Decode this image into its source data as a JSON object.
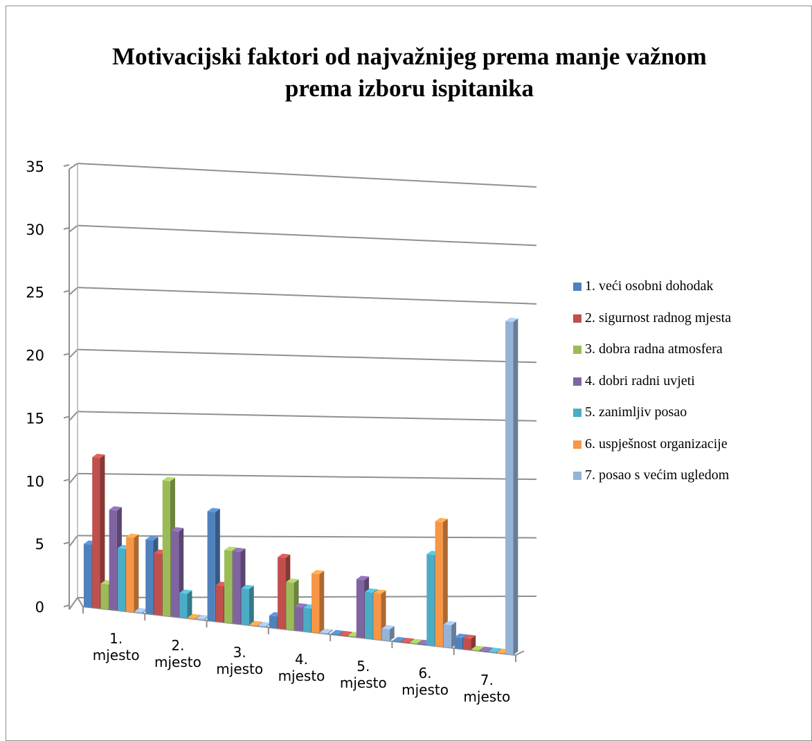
{
  "chart_data": {
    "type": "bar",
    "title": "Motivacijski faktori od najvažnijeg prema manje važnom prema izboru ispitanika",
    "categories": [
      "1. mjesto",
      "2. mjesto",
      "3. mjesto",
      "4. mjesto",
      "5. mjesto",
      "6. mjesto",
      "7. mjesto"
    ],
    "series": [
      {
        "name": "1. veći osobni dohodak",
        "color": "#4F81BD",
        "values": [
          5,
          6,
          9,
          1,
          0,
          0,
          1
        ]
      },
      {
        "name": "2. sigurnost radnog mjesta",
        "color": "#C0504D",
        "values": [
          12,
          5,
          3,
          6,
          0,
          0,
          1
        ]
      },
      {
        "name": "3. dobra radna atmosfera",
        "color": "#9BBB59",
        "values": [
          2,
          11,
          6,
          4,
          0,
          0,
          0
        ]
      },
      {
        "name": "4. dobri radni uvjeti",
        "color": "#8064A2",
        "values": [
          8,
          7,
          6,
          2,
          5,
          0,
          0
        ]
      },
      {
        "name": "5. zanimljiv posao",
        "color": "#4BACC6",
        "values": [
          5,
          2,
          3,
          2,
          4,
          8,
          0
        ]
      },
      {
        "name": "6. uspješnost organizacije",
        "color": "#F79646",
        "values": [
          6,
          0,
          0,
          5,
          4,
          11,
          0
        ]
      },
      {
        "name": "7. posao s većim ugledom",
        "color": "#95B3D7",
        "values": [
          0,
          0,
          0,
          0,
          1,
          2,
          30
        ]
      }
    ],
    "yticks": [
      "0",
      "5",
      "10",
      "15",
      "20",
      "25",
      "30",
      "35"
    ],
    "ylim": [
      0,
      35
    ],
    "grid": true,
    "legend_position": "right",
    "projection": "3d-clustered-column"
  }
}
